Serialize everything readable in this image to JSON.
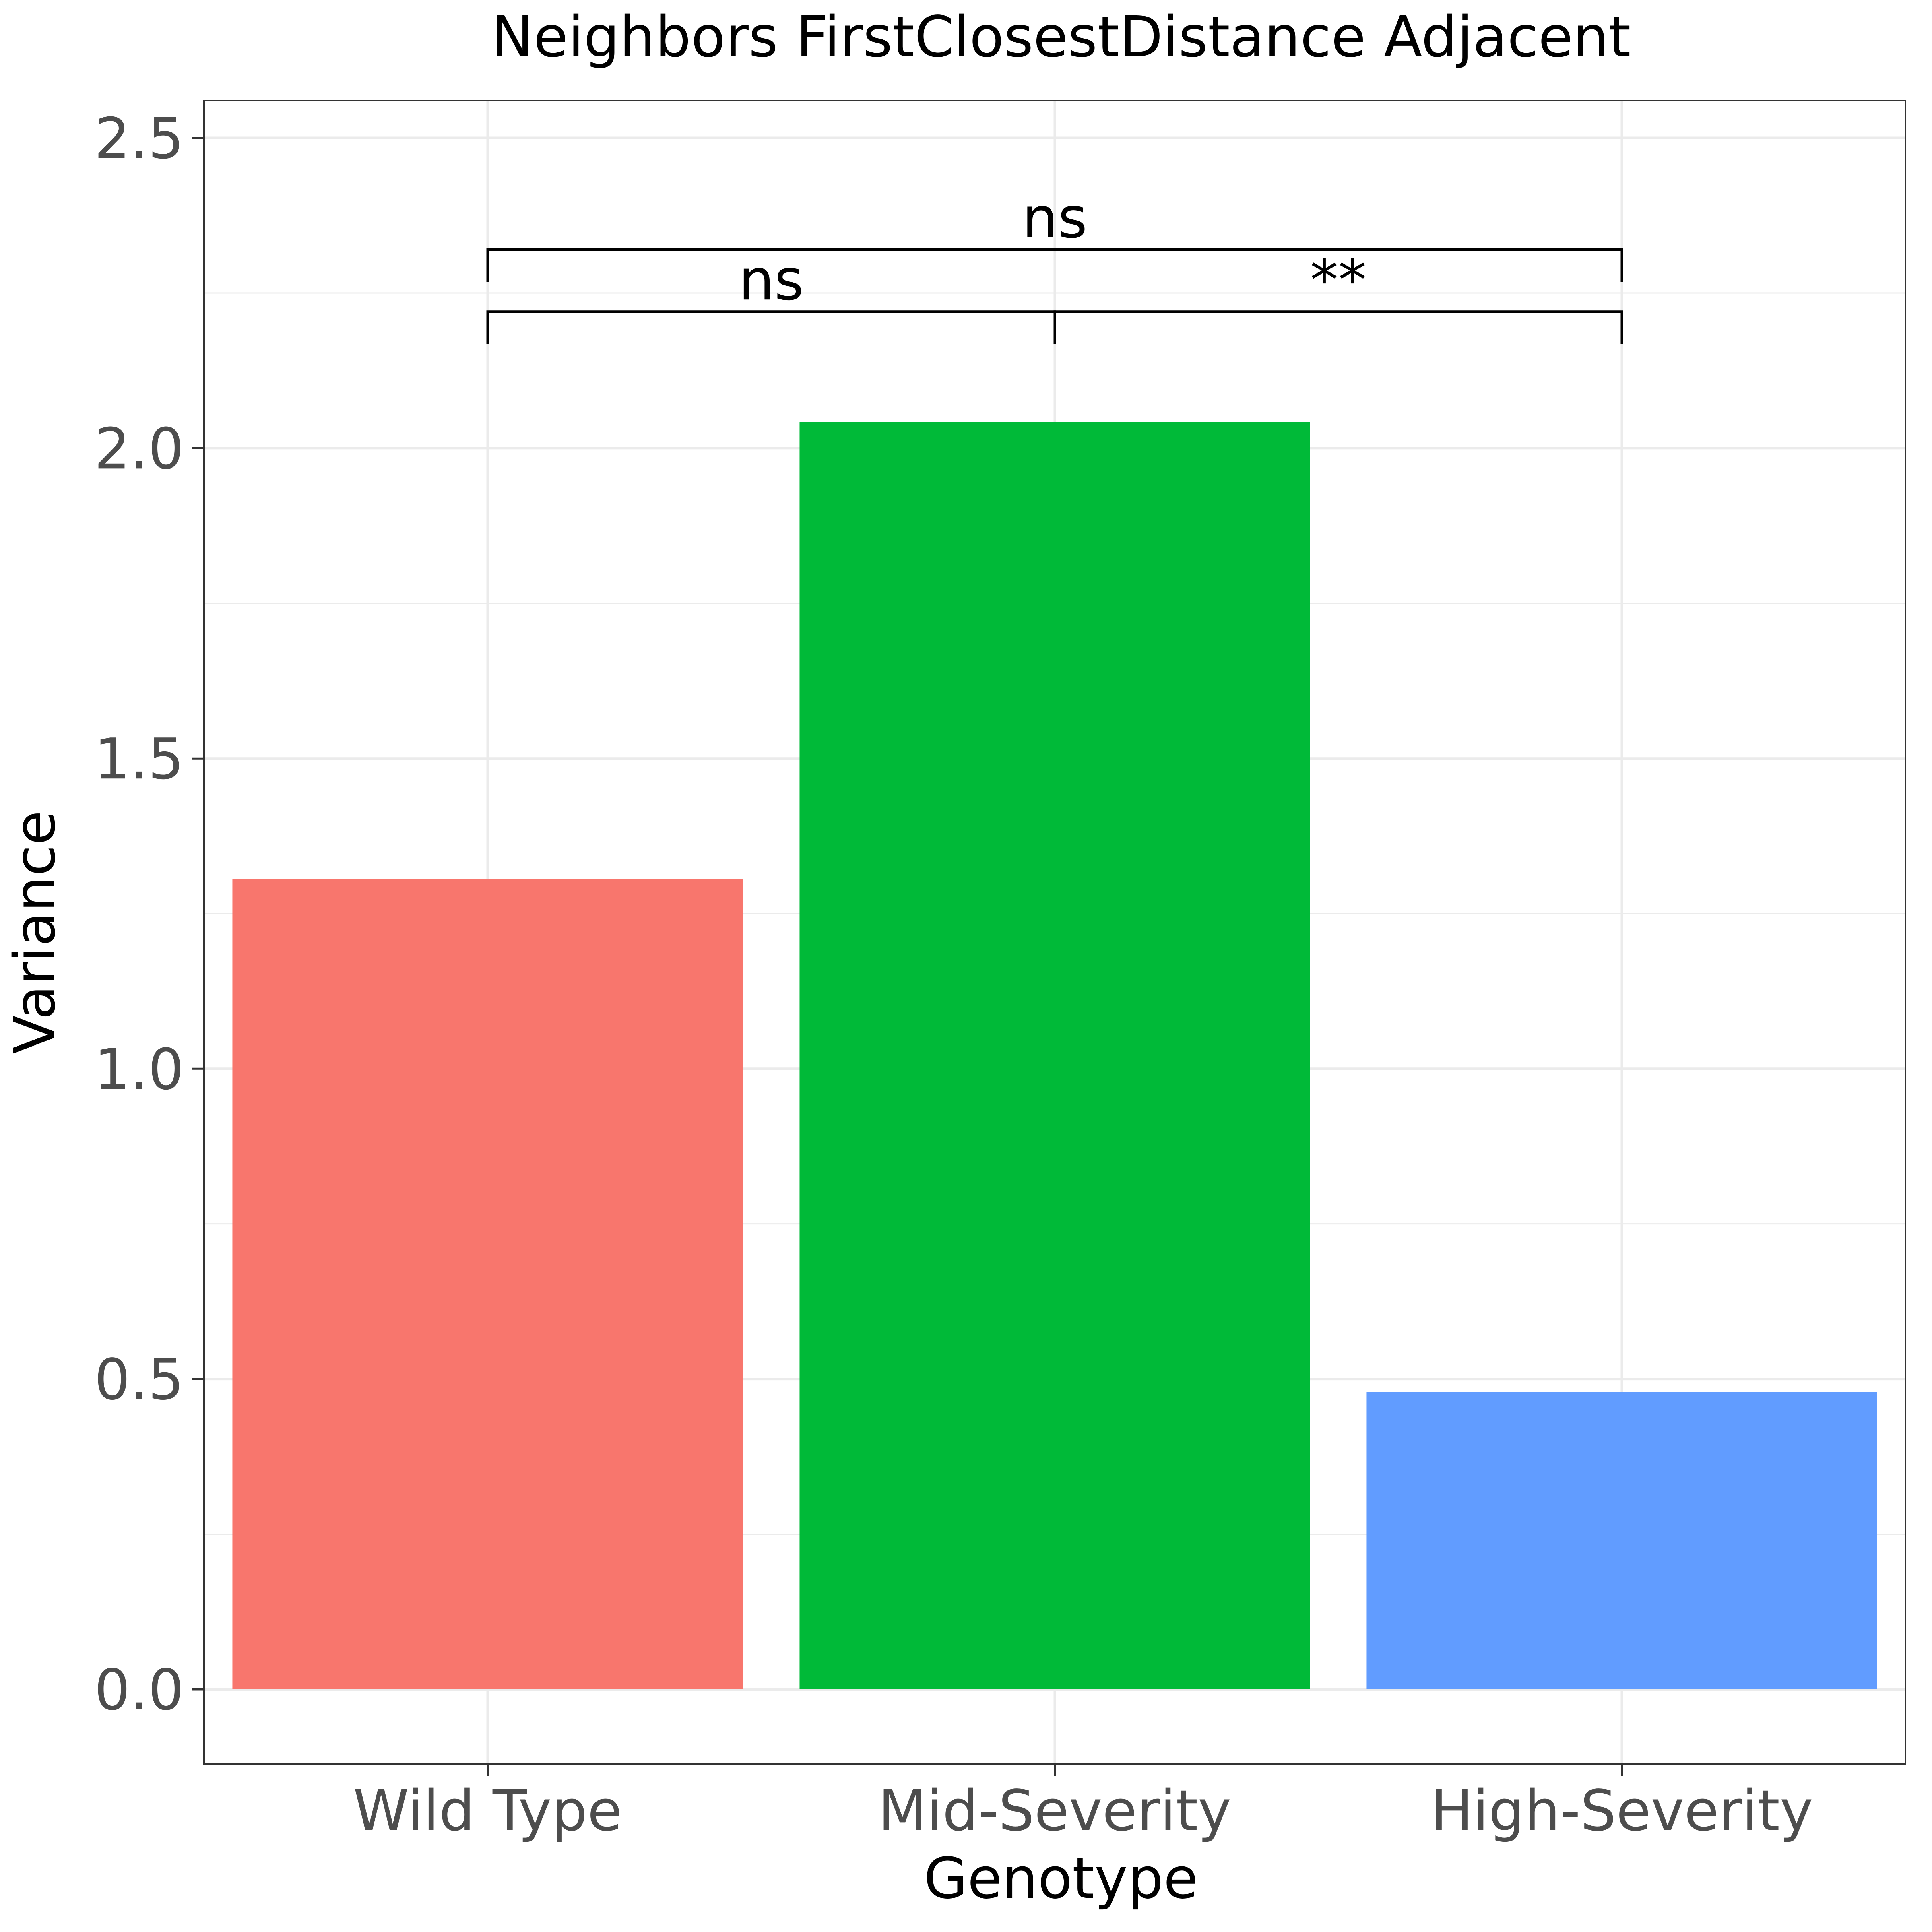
{
  "chart_data": {
    "type": "bar",
    "title": "Neighbors FirstClosestDistance Adjacent",
    "xlabel": "Genotype",
    "ylabel": "Variance",
    "categories": [
      "Wild Type",
      "Mid-Severity",
      "High-Severity"
    ],
    "values": [
      1.306,
      2.042,
      0.479
    ],
    "colors": [
      "#F8766D",
      "#00BA38",
      "#619CFF"
    ],
    "ylim": [
      -0.12,
      2.56
    ],
    "yticks": [
      "0.0",
      "0.5",
      "1.0",
      "1.5",
      "2.0",
      "2.5"
    ],
    "grid": true,
    "legend": "none",
    "comparisons": [
      {
        "from": "Wild Type",
        "to": "Mid-Severity",
        "label": "ns",
        "y": 2.22
      },
      {
        "from": "Mid-Severity",
        "to": "High-Severity",
        "label": "**",
        "y": 2.22
      },
      {
        "from": "Wild Type",
        "to": "High-Severity",
        "label": "ns",
        "y": 2.32
      }
    ]
  }
}
